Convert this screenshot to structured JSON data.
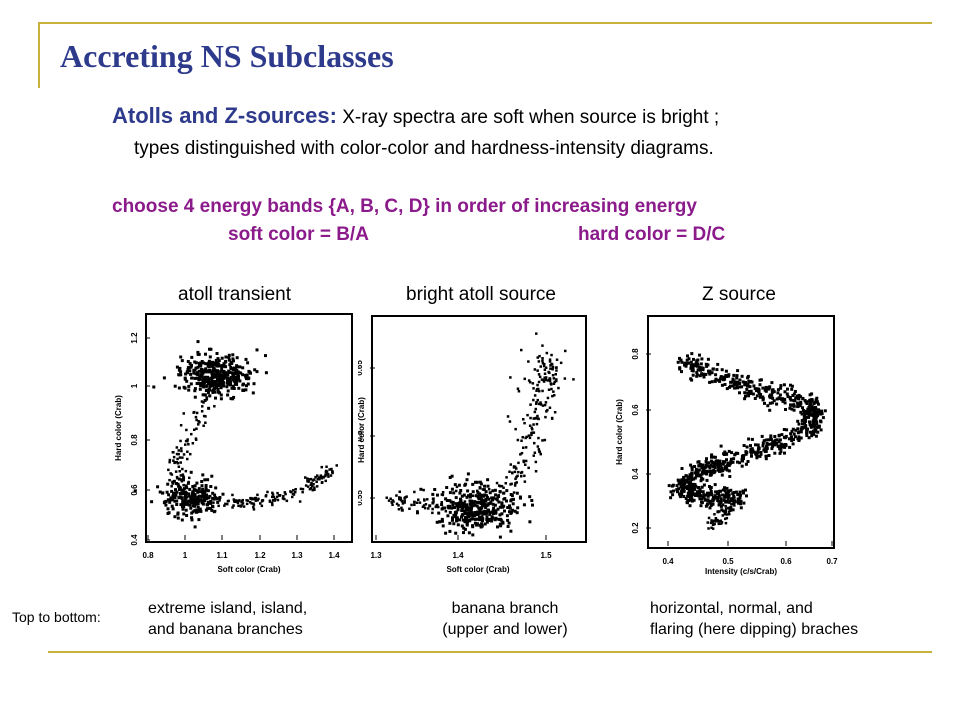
{
  "slide": {
    "title": "Accreting NS Subclasses",
    "intro_lead": "Atolls and Z-sources:",
    "intro_rest": " X-ray spectra are soft when source is bright ;",
    "intro_line2": "types distinguished with color-color and hardness-intensity diagrams.",
    "bands_line": "choose 4 energy bands {A, B, C, D} in order of increasing energy",
    "soft_color": "soft color = B/A",
    "hard_color": "hard color = D/C",
    "top_to_bottom": "Top to bottom:",
    "rule_color": "#c9b23c",
    "title_color": "#2e3a8c",
    "purple_color": "#8b1a8b"
  },
  "panels": [
    {
      "label": "atoll transient",
      "caption_lines": [
        "extreme island, island,",
        "and banana branches"
      ],
      "xlabel": "Soft color (Crab)",
      "ylabel": "Hard color (Crab)",
      "xlim": [
        0.8,
        1.4
      ],
      "ylim": [
        0.4,
        1.2
      ],
      "xticks": [
        "0.8",
        "1",
        "1.1",
        "1.2",
        "1.3",
        "1.4"
      ],
      "yticks": [
        "0.4",
        "0.6",
        "0.8",
        "1",
        "1.2"
      ]
    },
    {
      "label": "bright atoll source",
      "caption_lines": [
        "banana branch",
        "(upper and lower)"
      ],
      "xlabel": "Soft color (Crab)",
      "ylabel": "Hard color (Crab)",
      "xlim": [
        1.3,
        1.9
      ],
      "ylim": [
        0.5,
        0.7
      ],
      "xticks": [
        "1.3",
        "1.4",
        "1.5"
      ],
      "yticks": [
        "0.55",
        "0.6",
        "0.65"
      ]
    },
    {
      "label": "Z source",
      "caption_lines": [
        "horizontal, normal, and",
        "flaring (here dipping) braches"
      ],
      "xlabel": "Intensity (c/s/Crab)",
      "ylabel": "Hard color (Crab)",
      "xlim": [
        0.3,
        0.7
      ],
      "ylim": [
        0.1,
        0.9
      ],
      "xticks": [
        "0.4",
        "0.5",
        "0.6",
        "0.7"
      ],
      "yticks": [
        "0.2",
        "0.4",
        "0.6",
        "0.8"
      ]
    }
  ]
}
